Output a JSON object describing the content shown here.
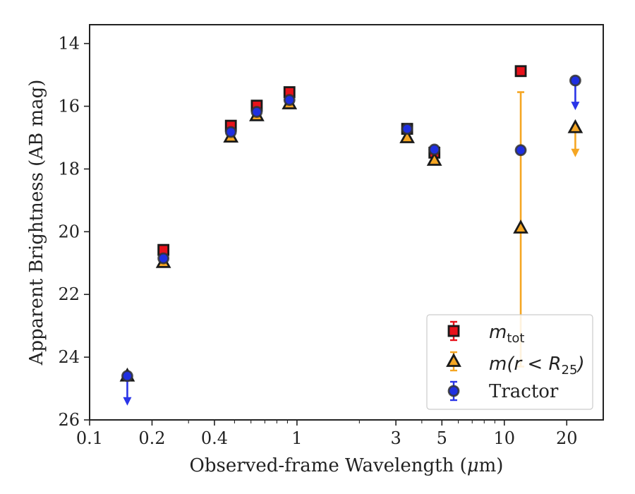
{
  "chart_data": {
    "type": "scatter",
    "xlabel_prefix": "Observed-frame Wavelength (",
    "xlabel_mu": "μ",
    "xlabel_suffix": "m)",
    "ylabel": "Apparent Brightness (AB mag)",
    "x_scale": "log",
    "xlim": [
      0.1,
      30
    ],
    "ylim": [
      26,
      13.4
    ],
    "y_inverted": true,
    "x_ticks": [
      {
        "value": 0.1,
        "label": "0.1"
      },
      {
        "value": 0.2,
        "label": "0.2"
      },
      {
        "value": 0.4,
        "label": "0.4"
      },
      {
        "value": 1,
        "label": "1"
      },
      {
        "value": 3,
        "label": "3"
      },
      {
        "value": 5,
        "label": "5"
      },
      {
        "value": 10,
        "label": "10"
      },
      {
        "value": 20,
        "label": "20"
      }
    ],
    "y_ticks": [
      {
        "value": 14,
        "label": "14"
      },
      {
        "value": 16,
        "label": "16"
      },
      {
        "value": 18,
        "label": "18"
      },
      {
        "value": 20,
        "label": "20"
      },
      {
        "value": 22,
        "label": "22"
      },
      {
        "value": 24,
        "label": "24"
      },
      {
        "value": 26,
        "label": "26"
      }
    ],
    "grid": false,
    "legend_position": "bottom-right",
    "series": [
      {
        "key": "mtot",
        "legend_main": "m",
        "legend_sub": "tot",
        "marker": "square",
        "face_color": "#e8121b",
        "edge_color": "#1a1a1a",
        "errbar_color": "#e8121b",
        "points": [
          {
            "x": 0.227,
            "y": 20.58
          },
          {
            "x": 0.48,
            "y": 16.62
          },
          {
            "x": 0.64,
            "y": 15.98
          },
          {
            "x": 0.92,
            "y": 15.55
          },
          {
            "x": 3.4,
            "y": 16.72
          },
          {
            "x": 4.6,
            "y": 17.48
          },
          {
            "x": 12.0,
            "y": 14.88
          }
        ]
      },
      {
        "key": "mr25",
        "legend_main": "m(r < R",
        "legend_sub": "25",
        "legend_close": ")",
        "marker": "triangle",
        "face_color": "#f5a623",
        "edge_color": "#1a1a1a",
        "errbar_color": "#f5a623",
        "points": [
          {
            "x": 0.152,
            "y": 24.6,
            "upper_limit": false
          },
          {
            "x": 0.227,
            "y": 20.98
          },
          {
            "x": 0.48,
            "y": 16.98
          },
          {
            "x": 0.64,
            "y": 16.3
          },
          {
            "x": 0.92,
            "y": 15.92
          },
          {
            "x": 3.4,
            "y": 17.0
          },
          {
            "x": 4.6,
            "y": 17.72
          },
          {
            "x": 12.0,
            "y": 19.88,
            "err_low": 15.55,
            "err_high": 24.3
          },
          {
            "x": 22.0,
            "y": 16.68,
            "upper_limit": true
          }
        ]
      },
      {
        "key": "tractor",
        "legend_main": "Tractor",
        "marker": "circle",
        "face_color": "#1f2fe0",
        "edge_color": "#333333",
        "errbar_color": "#2a35e8",
        "points": [
          {
            "x": 0.152,
            "y": 24.6,
            "upper_limit": true
          },
          {
            "x": 0.227,
            "y": 20.85
          },
          {
            "x": 0.48,
            "y": 16.82
          },
          {
            "x": 0.64,
            "y": 16.18
          },
          {
            "x": 0.92,
            "y": 15.8
          },
          {
            "x": 3.4,
            "y": 16.72
          },
          {
            "x": 4.6,
            "y": 17.38
          },
          {
            "x": 12.0,
            "y": 17.4
          },
          {
            "x": 22.0,
            "y": 15.18,
            "upper_limit": true
          }
        ]
      }
    ]
  }
}
